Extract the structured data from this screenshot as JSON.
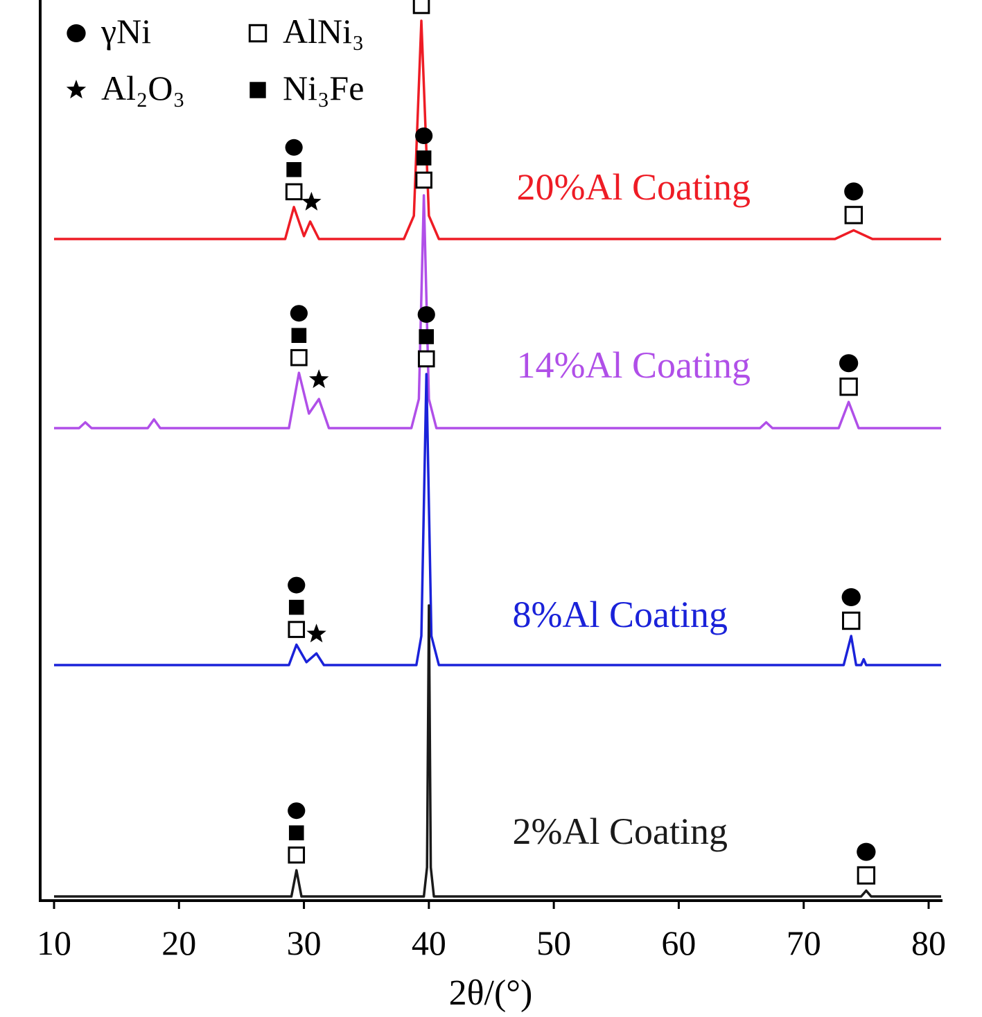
{
  "chart_data": {
    "type": "line",
    "title": "",
    "xlabel": "2θ/(°)",
    "ylabel": "",
    "xlim": [
      9,
      81
    ],
    "xticks": [
      10,
      20,
      30,
      40,
      50,
      60,
      70,
      80
    ],
    "xtick_labels": [
      "10",
      "20",
      "30",
      "40",
      "50",
      "60",
      "70",
      "80"
    ],
    "grid": false,
    "legend_placement": "top-left",
    "legend": [
      {
        "symbol": "circle",
        "label": "γNi"
      },
      {
        "symbol": "square-open",
        "label": "AlNi₃"
      },
      {
        "symbol": "star",
        "label": "Al₂O₃"
      },
      {
        "symbol": "square-filled",
        "label": "Ni₃Fe"
      }
    ],
    "series": [
      {
        "name": "20%Al Coating",
        "color": "#ee1c25",
        "x": [
          10,
          28.5,
          29.2,
          30,
          30.5,
          31.2,
          38.0,
          38.8,
          39.4,
          40.0,
          40.8,
          72.5,
          74.0,
          75.5,
          81
        ],
        "y": [
          0,
          0,
          0.11,
          0.01,
          0.06,
          0,
          0,
          0.08,
          0.75,
          0.08,
          0,
          0,
          0.03,
          0,
          0
        ],
        "peaks": [
          {
            "x": 29.2,
            "phases": [
              "circle",
              "square-filled",
              "square-open"
            ]
          },
          {
            "x": 30.6,
            "phases": [
              "star"
            ]
          },
          {
            "x": 39.4,
            "phases": [
              "circle",
              "square-filled",
              "square-open"
            ]
          },
          {
            "x": 74.0,
            "phases": [
              "circle",
              "square-open"
            ]
          }
        ]
      },
      {
        "name": "14%Al Coating",
        "color": "#b04fe8",
        "x": [
          10,
          12.0,
          12.5,
          13.0,
          17.5,
          18.0,
          18.5,
          28.8,
          29.6,
          30.4,
          31.2,
          32.0,
          38.6,
          39.2,
          39.6,
          40.0,
          40.6,
          66.5,
          67.0,
          67.5,
          72.8,
          73.6,
          74.4,
          81
        ],
        "y": [
          0,
          0,
          0.02,
          0,
          0,
          0.03,
          0,
          0,
          0.19,
          0.05,
          0.1,
          0,
          0,
          0.1,
          0.8,
          0.1,
          0,
          0,
          0.02,
          0,
          0,
          0.09,
          0,
          0
        ],
        "peaks": [
          {
            "x": 29.6,
            "phases": [
              "circle",
              "square-filled",
              "square-open"
            ]
          },
          {
            "x": 31.2,
            "phases": [
              "star"
            ]
          },
          {
            "x": 39.6,
            "phases": [
              "circle",
              "square-filled",
              "square-open"
            ]
          },
          {
            "x": 73.6,
            "phases": [
              "circle",
              "square-open"
            ]
          }
        ]
      },
      {
        "name": "8%Al Coating",
        "color": "#1a22d9",
        "x": [
          10,
          28.8,
          29.4,
          30.2,
          31.0,
          31.6,
          39.0,
          39.4,
          39.8,
          40.2,
          40.8,
          73.2,
          73.8,
          74.2,
          74.6,
          74.8,
          75.0,
          81
        ],
        "y": [
          0,
          0,
          0.07,
          0.01,
          0.04,
          0,
          0,
          0.1,
          1.0,
          0.1,
          0,
          0,
          0.1,
          0,
          0,
          0.02,
          0,
          0
        ],
        "peaks": [
          {
            "x": 29.4,
            "phases": [
              "circle",
              "square-filled",
              "square-open"
            ]
          },
          {
            "x": 31.0,
            "phases": [
              "star"
            ]
          },
          {
            "x": 39.8,
            "phases": [
              "circle",
              "square-filled",
              "square-open"
            ]
          },
          {
            "x": 73.8,
            "phases": [
              "circle",
              "square-open"
            ]
          }
        ]
      },
      {
        "name": "2%Al Coating",
        "color": "#1a1a1a",
        "x": [
          10,
          29.0,
          29.4,
          29.8,
          39.6,
          39.85,
          40.0,
          40.15,
          40.4,
          74.6,
          75.0,
          75.4,
          81
        ],
        "y": [
          0,
          0,
          0.09,
          0,
          0,
          0.1,
          1.0,
          0.1,
          0,
          0,
          0.02,
          0,
          0
        ],
        "peaks": [
          {
            "x": 29.4,
            "phases": [
              "circle",
              "square-filled",
              "square-open"
            ]
          },
          {
            "x": 75.0,
            "phases": [
              "circle",
              "square-open"
            ]
          }
        ]
      }
    ]
  }
}
